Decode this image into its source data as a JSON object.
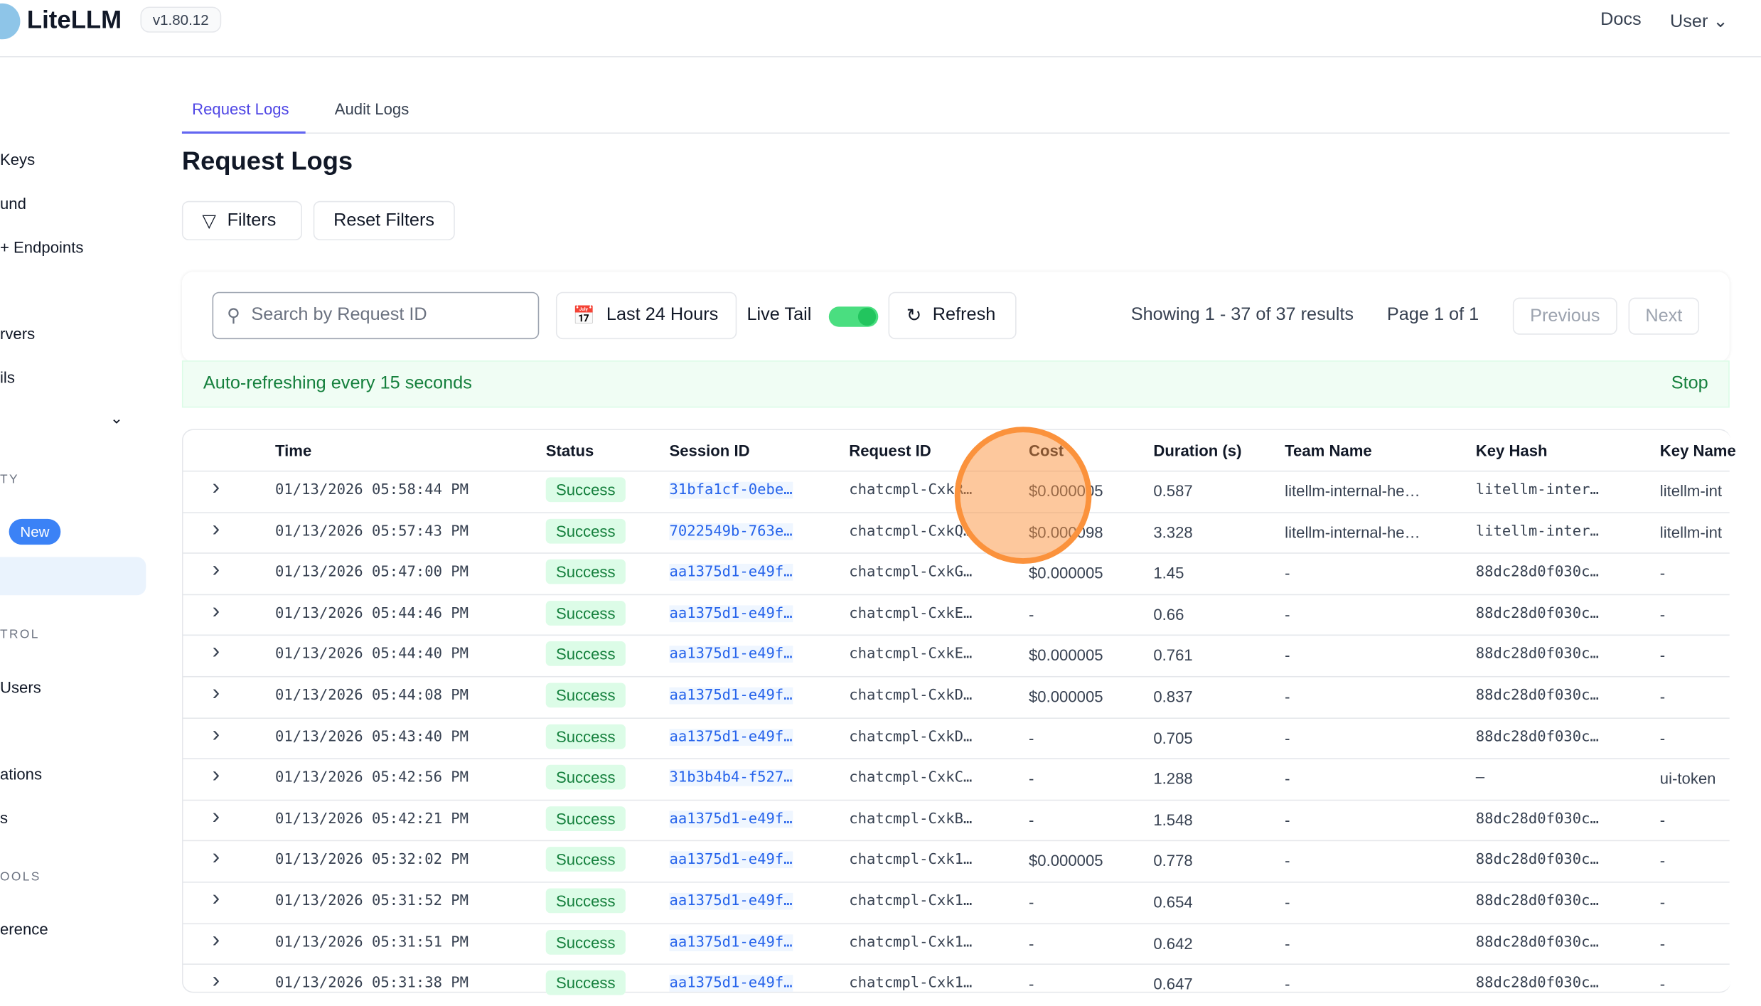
{
  "header": {
    "brand": "LiteLLM",
    "version": "v1.80.12",
    "docs": "Docs",
    "user": "User"
  },
  "sidebar": {
    "items": [
      "Keys",
      "und",
      "+ Endpoints",
      "rvers",
      "ils",
      "TY",
      "New",
      "TROL",
      "Users",
      "ations",
      "s",
      "OOLS",
      "erence"
    ]
  },
  "tabs": [
    "Request Logs",
    "Audit Logs"
  ],
  "page_title": "Request Logs",
  "toolbar": {
    "filters": "Filters",
    "reset": "Reset Filters",
    "search_placeholder": "Search by Request ID",
    "range": "Last 24 Hours",
    "live_tail": "Live Tail",
    "live_tail_on": true,
    "refresh": "Refresh",
    "showing": "Showing 1 - 37 of 37 results",
    "page": "Page 1 of 1",
    "previous": "Previous",
    "next": "Next"
  },
  "banner": {
    "text": "Auto-refreshing every 15 seconds",
    "stop": "Stop"
  },
  "columns": [
    "Time",
    "Status",
    "Session ID",
    "Request ID",
    "Cost",
    "Duration (s)",
    "Team Name",
    "Key Hash",
    "Key Name"
  ],
  "rows": [
    [
      "01/13/2026 05:58:44 PM",
      "Success",
      "31bfa1cf-0ebe…",
      "chatcmpl-CxkR…",
      "$0.000005",
      "0.587",
      "litellm-internal-he…",
      "litellm-inter…",
      "litellm-int"
    ],
    [
      "01/13/2026 05:57:43 PM",
      "Success",
      "7022549b-763e…",
      "chatcmpl-CxkQ…",
      "$0.000098",
      "3.328",
      "litellm-internal-he…",
      "litellm-inter…",
      "litellm-int"
    ],
    [
      "01/13/2026 05:47:00 PM",
      "Success",
      "aa1375d1-e49f…",
      "chatcmpl-CxkG…",
      "$0.000005",
      "1.45",
      "-",
      "88dc28d0f030c…",
      "-"
    ],
    [
      "01/13/2026 05:44:46 PM",
      "Success",
      "aa1375d1-e49f…",
      "chatcmpl-CxkE…",
      "-",
      "0.66",
      "-",
      "88dc28d0f030c…",
      "-"
    ],
    [
      "01/13/2026 05:44:40 PM",
      "Success",
      "aa1375d1-e49f…",
      "chatcmpl-CxkE…",
      "$0.000005",
      "0.761",
      "-",
      "88dc28d0f030c…",
      "-"
    ],
    [
      "01/13/2026 05:44:08 PM",
      "Success",
      "aa1375d1-e49f…",
      "chatcmpl-CxkD…",
      "$0.000005",
      "0.837",
      "-",
      "88dc28d0f030c…",
      "-"
    ],
    [
      "01/13/2026 05:43:40 PM",
      "Success",
      "aa1375d1-e49f…",
      "chatcmpl-CxkD…",
      "-",
      "0.705",
      "-",
      "88dc28d0f030c…",
      "-"
    ],
    [
      "01/13/2026 05:42:56 PM",
      "Success",
      "31b3b4b4-f527…",
      "chatcmpl-CxkC…",
      "-",
      "1.288",
      "-",
      "–",
      "ui-token"
    ],
    [
      "01/13/2026 05:42:21 PM",
      "Success",
      "aa1375d1-e49f…",
      "chatcmpl-CxkB…",
      "-",
      "1.548",
      "-",
      "88dc28d0f030c…",
      "-"
    ],
    [
      "01/13/2026 05:32:02 PM",
      "Success",
      "aa1375d1-e49f…",
      "chatcmpl-Cxk1…",
      "$0.000005",
      "0.778",
      "-",
      "88dc28d0f030c…",
      "-"
    ],
    [
      "01/13/2026 05:31:52 PM",
      "Success",
      "aa1375d1-e49f…",
      "chatcmpl-Cxk1…",
      "-",
      "0.654",
      "-",
      "88dc28d0f030c…",
      "-"
    ],
    [
      "01/13/2026 05:31:51 PM",
      "Success",
      "aa1375d1-e49f…",
      "chatcmpl-Cxk1…",
      "-",
      "0.642",
      "-",
      "88dc28d0f030c…",
      "-"
    ],
    [
      "01/13/2026 05:31:38 PM",
      "Success",
      "aa1375d1-e49f…",
      "chatcmpl-Cxk1…",
      "-",
      "0.647",
      "-",
      "88dc28d0f030c…",
      "-"
    ]
  ]
}
